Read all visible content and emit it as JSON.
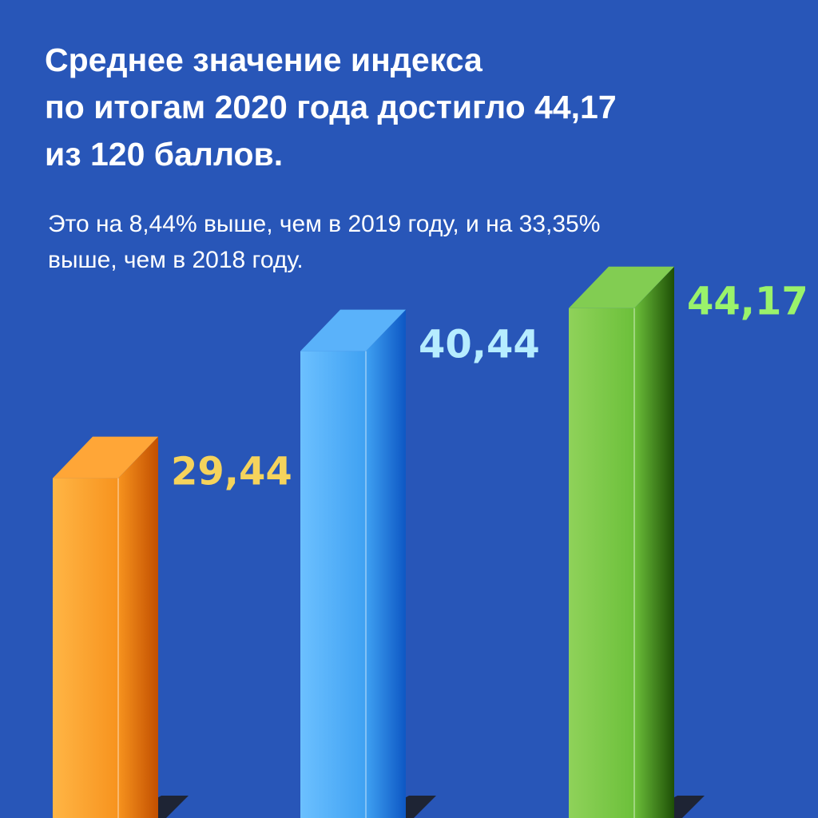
{
  "header": {
    "title_lines": [
      "Среднее значение индекса",
      "по итогам 2020 года достигло 44,17",
      "из 120 баллов."
    ],
    "subtitle_lines": [
      "Это на 8,44% выше, чем в 2019 году, и на 33,35%",
      "выше, чем в 2018 году."
    ]
  },
  "colors": {
    "background": "#2856b8",
    "bar_2018": "#f7931e",
    "bar_2019": "#3fa1f2",
    "bar_2020": "#6cc03a",
    "label_2018": "#f5d35c",
    "label_2019": "#b6ecff",
    "label_2020": "#9af26b"
  },
  "chart_data": {
    "type": "bar",
    "title": "",
    "xlabel": "",
    "ylabel": "",
    "categories": [
      "",
      "",
      ""
    ],
    "values": [
      29.44,
      40.44,
      44.17
    ],
    "value_labels": [
      "29,44",
      "40,44",
      "44,17"
    ],
    "ylim": [
      0,
      120
    ],
    "grid": false,
    "legend": "none"
  }
}
